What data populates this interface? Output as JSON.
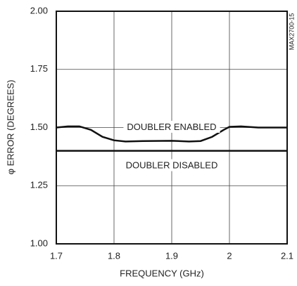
{
  "chart_data": {
    "type": "line",
    "xlabel": "FREQUENCY (GHz)",
    "ylabel": "φ ERROR (DEGREES)",
    "annotation": "MAX2700-15",
    "xlim": [
      1.7,
      2.1
    ],
    "xticks": [
      1.7,
      1.8,
      1.9,
      2.0,
      2.1
    ],
    "ylim": [
      1.0,
      2.0
    ],
    "yticks": [
      {
        "value": 1.0,
        "label": "1.00"
      },
      {
        "value": 1.25,
        "label": "1.25"
      },
      {
        "value": 1.5,
        "label": "1.50"
      },
      {
        "value": 1.75,
        "label": "1.75"
      },
      {
        "value": 2.0,
        "label": "2.00"
      }
    ],
    "grid": true,
    "series": [
      {
        "name": "DOUBLER ENABLED",
        "color": "#111111",
        "x": [
          1.7,
          1.72,
          1.74,
          1.76,
          1.78,
          1.8,
          1.82,
          1.85,
          1.9,
          1.93,
          1.95,
          1.97,
          1.99,
          2.0,
          2.02,
          2.05,
          2.1
        ],
        "values": [
          1.5,
          1.505,
          1.505,
          1.49,
          1.46,
          1.445,
          1.44,
          1.442,
          1.443,
          1.44,
          1.442,
          1.46,
          1.49,
          1.503,
          1.505,
          1.5,
          1.5
        ]
      },
      {
        "name": "DOUBLER DISABLED",
        "color": "#111111",
        "x": [
          1.7,
          2.1
        ],
        "values": [
          1.4,
          1.4
        ]
      }
    ]
  }
}
